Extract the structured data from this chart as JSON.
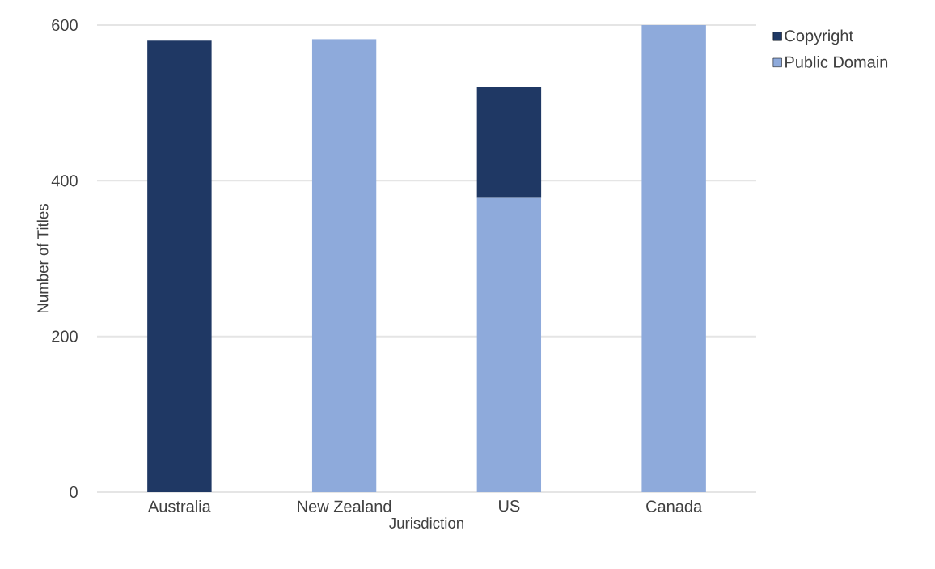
{
  "chart_data": {
    "type": "bar",
    "stacked": true,
    "xlabel": "Jurisdiction",
    "ylabel": "Number of Titles",
    "categories": [
      "Australia",
      "New Zealand",
      "US",
      "Canada"
    ],
    "series": [
      {
        "name": "Public Domain",
        "color": "#8eaadb",
        "values": [
          null,
          582,
          378,
          600
        ]
      },
      {
        "name": "Copyright",
        "color": "#1f3864",
        "values": [
          580,
          null,
          142,
          null
        ]
      }
    ],
    "ylim": [
      0,
      600
    ],
    "yticks": [
      0,
      200,
      400,
      600
    ],
    "grid": "y",
    "legend": "top right"
  }
}
